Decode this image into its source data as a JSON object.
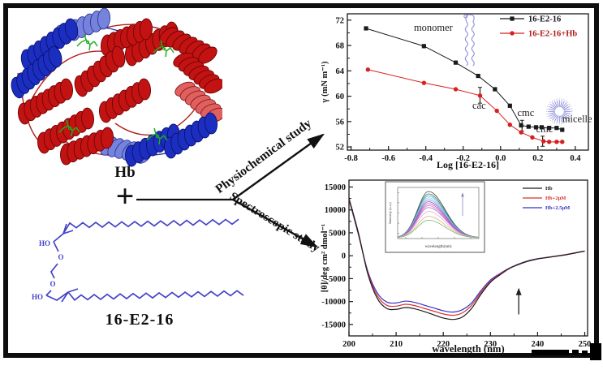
{
  "left_panel": {
    "protein_label": "Hb",
    "plus": "+",
    "surfactant_label": "16-E2-16",
    "structure_labels": {
      "ho_top": "HO",
      "o_top": "O",
      "o_mid": "O",
      "ho_bottom": "HO"
    }
  },
  "scheme": {
    "top_arrow_label": "Physiochemical study",
    "bottom_arrow_label": "Spectroscopic study"
  },
  "colors": {
    "surfactant_blue": "#4343c8",
    "decoration_blue": "#8d8dd8",
    "axis_black": "#1a1a1a",
    "series_red": "#d82020",
    "cd_red": "#d83030",
    "cd_blue": "#3434c8"
  },
  "chart_data": [
    {
      "type": "line",
      "name": "surface-tension-plot",
      "xlabel": "Log [16-E2-16]",
      "ylabel": "γ (mN m⁻¹)",
      "xlim": [
        -0.82,
        0.47
      ],
      "ylim": [
        51.5,
        73
      ],
      "xticks": [
        -0.8,
        -0.6,
        -0.4,
        -0.2,
        0.0,
        0.2,
        0.4
      ],
      "yticks": [
        52,
        56,
        60,
        64,
        68,
        72
      ],
      "grid": false,
      "legend_position": "top-right",
      "series": [
        {
          "name": "16-E2-16",
          "color": "#1a1a1a",
          "label_color": "#14141e",
          "marker": "square",
          "x": [
            -0.72,
            -0.41,
            -0.24,
            -0.12,
            -0.03,
            0.05,
            0.11,
            0.15,
            0.19,
            0.22,
            0.26,
            0.3,
            0.33
          ],
          "y": [
            70.7,
            67.9,
            65.3,
            63.2,
            61.1,
            58.5,
            55.4,
            55.2,
            55.1,
            55.1,
            55.0,
            55.0,
            54.7
          ]
        },
        {
          "name": "16-E2-16+Hb",
          "color": "#d82020",
          "label_color": "#b01818",
          "marker": "circle",
          "x": [
            -0.71,
            -0.41,
            -0.24,
            -0.11,
            -0.02,
            0.05,
            0.11,
            0.17,
            0.23,
            0.26,
            0.3,
            0.33
          ],
          "y": [
            64.2,
            62.1,
            61.1,
            60.1,
            57.7,
            55.5,
            54.3,
            53.5,
            52.9,
            52.8,
            52.8,
            52.8
          ]
        }
      ],
      "annotations": [
        {
          "text": "monomer",
          "x": -0.36,
          "y": 70.3
        },
        {
          "text": "cac",
          "x": -0.115,
          "y": 58.0
        },
        {
          "text": "cmc",
          "x": 0.135,
          "y": 56.9
        },
        {
          "text": "cmc",
          "x": 0.235,
          "y": 54.3
        },
        {
          "text": "micelle",
          "x": 0.41,
          "y": 55.9
        }
      ],
      "error_bars": [
        {
          "x": -0.11,
          "y_low": 58.9,
          "y_high": 61.4
        },
        {
          "x": 0.115,
          "y_low": 54.5,
          "y_high": 56.2
        },
        {
          "x": 0.225,
          "y_low": 52.1,
          "y_high": 53.7
        }
      ],
      "decorations": {
        "monomer_glyph": {
          "x": -0.165,
          "y_top": 72.6,
          "y_bottom": 65.3
        },
        "micelle_glyph": {
          "x": 0.315,
          "y": 57.6,
          "radius_px": 14
        }
      }
    },
    {
      "type": "line",
      "name": "cd-spectra-plot",
      "xlabel": "wavelength (nm)",
      "ylabel": "[θ]/deg cm² dmol⁻¹",
      "xlim": [
        200,
        250.6
      ],
      "ylim": [
        -17500,
        16500
      ],
      "xticks": [
        200,
        210,
        220,
        230,
        240,
        250
      ],
      "yticks": [
        -15000,
        -10000,
        -5000,
        0,
        5000,
        10000,
        15000
      ],
      "x": [
        200,
        202,
        204,
        206,
        208,
        210,
        212,
        214,
        216,
        218,
        220,
        222,
        224,
        226,
        228,
        230,
        232,
        234,
        236,
        238,
        240,
        242,
        244,
        246,
        248,
        250
      ],
      "series": [
        {
          "name": "Hb",
          "color": "#1a1a1a",
          "y": [
            12500,
            5000,
            -4000,
            -9300,
            -11500,
            -11700,
            -11300,
            -11600,
            -12200,
            -12900,
            -13600,
            -13900,
            -13400,
            -11500,
            -8400,
            -5800,
            -4200,
            -2800,
            -1900,
            -1200,
            -700,
            -400,
            -100,
            200,
            600,
            1000
          ]
        },
        {
          "name": "Hb+2μM",
          "color": "#d83030",
          "y": [
            12400,
            4800,
            -3700,
            -8700,
            -10800,
            -11000,
            -10600,
            -10900,
            -11500,
            -12100,
            -12700,
            -13000,
            -12500,
            -10800,
            -8000,
            -5600,
            -4050,
            -2750,
            -1850,
            -1150,
            -680,
            -380,
            -80,
            230,
            630,
            1020
          ]
        },
        {
          "name": "Hb+2.5μM",
          "color": "#3434c8",
          "y": [
            12300,
            4600,
            -3400,
            -8100,
            -10100,
            -10300,
            -9900,
            -10200,
            -10800,
            -11400,
            -12000,
            -12300,
            -11800,
            -10300,
            -7600,
            -5300,
            -3900,
            -2700,
            -1800,
            -1100,
            -650,
            -350,
            -50,
            260,
            660,
            1040
          ]
        }
      ],
      "arrow": {
        "x": 236,
        "y_from": -12800,
        "y_to": -7000
      },
      "inset": {
        "type": "line",
        "xlabel": "wavelength(nm)",
        "ylabel": "Intensity (a.u.)",
        "peak_fractions": [
          0.95,
          0.9,
          0.86,
          0.82,
          0.78,
          0.74,
          0.7,
          0.66,
          0.62,
          0.54,
          0.44,
          0.36
        ],
        "colors": [
          "#4a4632",
          "#2a8070",
          "#45aac8",
          "#85c8e8",
          "#9090d8",
          "#7e58c4",
          "#bc52c4",
          "#e06cb6",
          "#a470d6",
          "#eca8cc",
          "#d8b478",
          "#74ba74"
        ],
        "arrow_direction": "up"
      }
    }
  ]
}
